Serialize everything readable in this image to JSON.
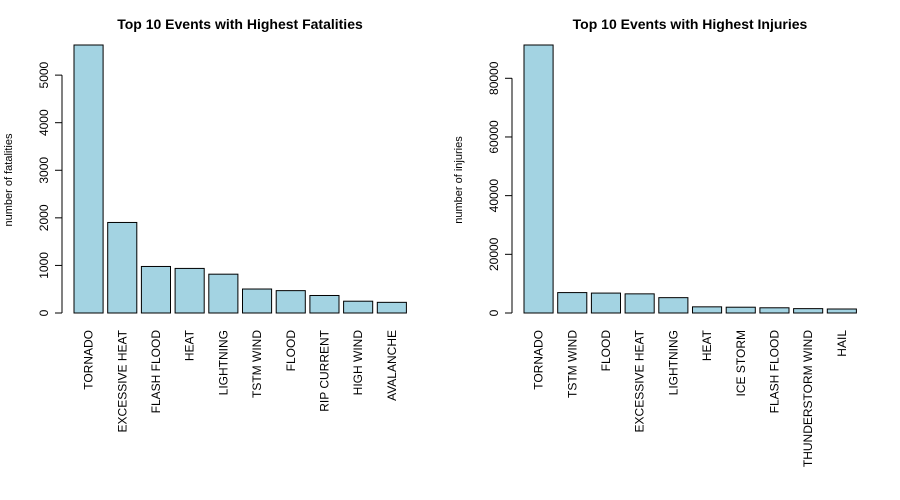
{
  "chart_data": [
    {
      "type": "bar",
      "title": "Top 10 Events with Highest Fatalities",
      "xlabel": "",
      "ylabel": "number of fatalities",
      "categories": [
        "TORNADO",
        "EXCESSIVE HEAT",
        "FLASH FLOOD",
        "HEAT",
        "LIGHTNING",
        "TSTM WIND",
        "FLOOD",
        "RIP CURRENT",
        "HIGH WIND",
        "AVALANCHE"
      ],
      "values": [
        5633,
        1903,
        978,
        937,
        816,
        504,
        470,
        368,
        248,
        224
      ],
      "yticks": [
        0,
        1000,
        2000,
        3000,
        4000,
        5000
      ],
      "ytick_labels": [
        "0",
        "1000",
        "2000",
        "3000",
        "4000",
        "5000"
      ],
      "ylim": [
        0,
        5633
      ],
      "bar_color": "#a3d3e2",
      "grid": false
    },
    {
      "type": "bar",
      "title": "Top 10 Events with Highest Injuries",
      "xlabel": "",
      "ylabel": "number of injuries",
      "categories": [
        "TORNADO",
        "TSTM WIND",
        "FLOOD",
        "EXCESSIVE HEAT",
        "LIGHTNING",
        "HEAT",
        "ICE STORM",
        "FLASH FLOOD",
        "THUNDERSTORM WIND",
        "HAIL"
      ],
      "values": [
        91346,
        6957,
        6789,
        6525,
        5230,
        2100,
        1975,
        1777,
        1488,
        1361
      ],
      "yticks": [
        0,
        20000,
        40000,
        60000,
        80000
      ],
      "ytick_labels": [
        "0",
        "20000",
        "40000",
        "60000",
        "80000"
      ],
      "ylim": [
        0,
        91346
      ],
      "bar_color": "#a3d3e2",
      "grid": false
    }
  ]
}
